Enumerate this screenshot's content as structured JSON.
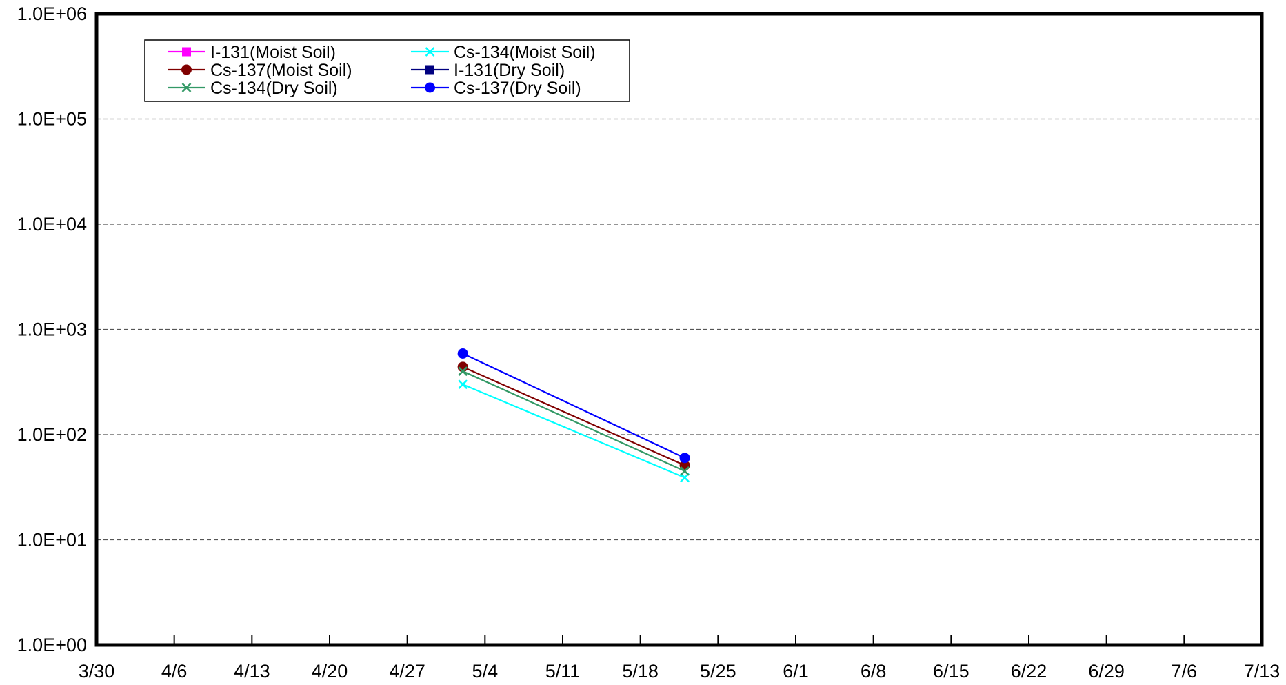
{
  "chart_data": {
    "type": "line",
    "title": "",
    "xlabel": "",
    "ylabel": "",
    "y_scale": "log",
    "ylim": [
      1,
      1000000
    ],
    "y_tick_labels": [
      "1.0E+00",
      "1.0E+01",
      "1.0E+02",
      "1.0E+03",
      "1.0E+04",
      "1.0E+05",
      "1.0E+06"
    ],
    "x_tick_labels": [
      "3/30",
      "4/6",
      "4/13",
      "4/20",
      "4/27",
      "5/4",
      "5/11",
      "5/18",
      "5/25",
      "6/1",
      "6/8",
      "6/15",
      "6/22",
      "6/29",
      "7/6",
      "7/13"
    ],
    "xlim": [
      "3/30",
      "7/13"
    ],
    "grid": "horizontal dashed",
    "legend_position": "top-left",
    "series": [
      {
        "name": "I-131(Moist Soil)",
        "color": "#ff00ff",
        "marker": "square",
        "x": [],
        "values": []
      },
      {
        "name": "Cs-134(Moist Soil)",
        "color": "#00ffff",
        "marker": "x",
        "x": [
          "5/2",
          "5/22"
        ],
        "values": [
          300,
          39
        ]
      },
      {
        "name": "Cs-137(Moist Soil)",
        "color": "#800000",
        "marker": "circle",
        "x": [
          "5/2",
          "5/22"
        ],
        "values": [
          440,
          51
        ]
      },
      {
        "name": "I-131(Dry Soil)",
        "color": "#000080",
        "marker": "square",
        "x": [],
        "values": []
      },
      {
        "name": "Cs-134(Dry Soil)",
        "color": "#339966",
        "marker": "x",
        "x": [
          "5/2",
          "5/22"
        ],
        "values": [
          400,
          45
        ]
      },
      {
        "name": "Cs-137(Dry Soil)",
        "color": "#0000ff",
        "marker": "circle",
        "x": [
          "5/2",
          "5/22"
        ],
        "values": [
          590,
          60
        ]
      }
    ]
  }
}
